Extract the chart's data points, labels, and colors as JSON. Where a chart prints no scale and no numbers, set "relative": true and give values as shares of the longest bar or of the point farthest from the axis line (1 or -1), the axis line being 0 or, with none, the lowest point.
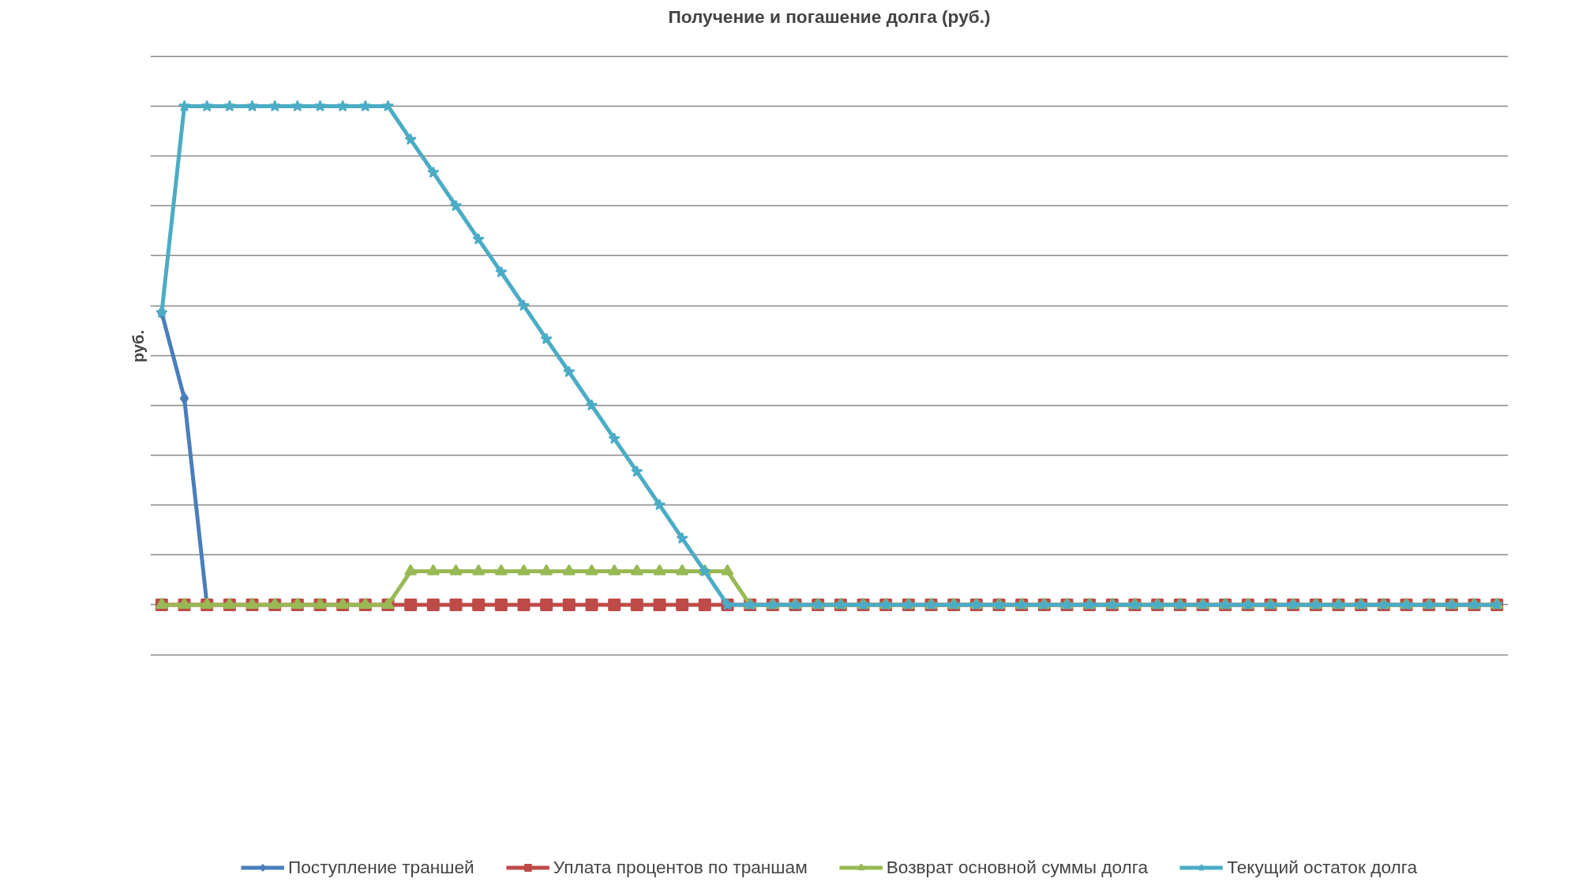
{
  "chart_data": {
    "type": "line",
    "title": "Получение и погашение долга (руб.)",
    "ylabel": "руб.",
    "relative": true,
    "grid": "y",
    "legend": "bottom",
    "categories": [
      null,
      null,
      null,
      null,
      null,
      null,
      null,
      null,
      null,
      null,
      null,
      null,
      null,
      null,
      null,
      null,
      null,
      null,
      null,
      null,
      null,
      null,
      null,
      null,
      null,
      null,
      null,
      null,
      null,
      null,
      null,
      null,
      null,
      null,
      null,
      null,
      null,
      null,
      null,
      null,
      null,
      null,
      null,
      null,
      null,
      null,
      null,
      null,
      null,
      null,
      null,
      null,
      null,
      null,
      null,
      null,
      null,
      null,
      null,
      null
    ],
    "series": [
      {
        "name": "Поступление траншей",
        "color": "#4a7ebb",
        "marker": "diamond",
        "values": [
          0.586,
          0.414,
          0,
          null,
          null,
          null,
          null,
          null,
          null,
          null,
          null,
          null,
          null,
          null,
          null,
          null,
          null,
          null,
          null,
          null,
          null,
          null,
          null,
          null,
          null,
          null,
          null,
          null,
          null,
          null,
          null,
          null,
          null,
          null,
          null,
          null,
          null,
          null,
          null,
          null,
          null,
          null,
          null,
          null,
          null,
          null,
          null,
          null,
          null,
          null,
          null,
          null,
          null,
          null,
          null,
          null,
          null,
          null,
          null,
          null
        ]
      },
      {
        "name": "Уплата процентов по траншам",
        "color": "#be4b48",
        "marker": "square",
        "values": [
          0,
          0,
          0,
          0,
          0,
          0,
          0,
          0,
          0,
          0,
          0,
          0,
          0,
          0,
          0,
          0,
          0,
          0,
          0,
          0,
          0,
          0,
          0,
          0,
          0,
          0,
          0,
          0,
          0,
          0,
          0,
          0,
          0,
          0,
          0,
          0,
          0,
          0,
          0,
          0,
          0,
          0,
          0,
          0,
          0,
          0,
          0,
          0,
          0,
          0,
          0,
          0,
          0,
          0,
          0,
          0,
          0,
          0,
          0,
          0
        ]
      },
      {
        "name": "Возврат основной суммы долга",
        "color": "#98b954",
        "marker": "triangle",
        "values": [
          0,
          0,
          0,
          0,
          0,
          0,
          0,
          0,
          0,
          0,
          0,
          0.067,
          0.067,
          0.067,
          0.067,
          0.067,
          0.067,
          0.067,
          0.067,
          0.067,
          0.067,
          0.067,
          0.067,
          0.067,
          0.067,
          0.067,
          0,
          0,
          0,
          0,
          0,
          0,
          0,
          0,
          0,
          0,
          0,
          0,
          0,
          0,
          0,
          0,
          0,
          0,
          0,
          0,
          0,
          0,
          0,
          0,
          0,
          0,
          0,
          0,
          0,
          0,
          0,
          0,
          0,
          0
        ]
      },
      {
        "name": "Текущий остаток долга",
        "color": "#4bacc6",
        "marker": "star",
        "values": [
          0.586,
          1,
          1,
          1,
          1,
          1,
          1,
          1,
          1,
          1,
          1,
          0.933,
          0.867,
          0.8,
          0.733,
          0.667,
          0.6,
          0.533,
          0.467,
          0.4,
          0.333,
          0.267,
          0.2,
          0.133,
          0.067,
          0,
          0,
          0,
          0,
          0,
          0,
          0,
          0,
          0,
          0,
          0,
          0,
          0,
          0,
          0,
          0,
          0,
          0,
          0,
          0,
          0,
          0,
          0,
          0,
          0,
          0,
          0,
          0,
          0,
          0,
          0,
          0,
          0,
          0,
          0
        ]
      }
    ]
  }
}
